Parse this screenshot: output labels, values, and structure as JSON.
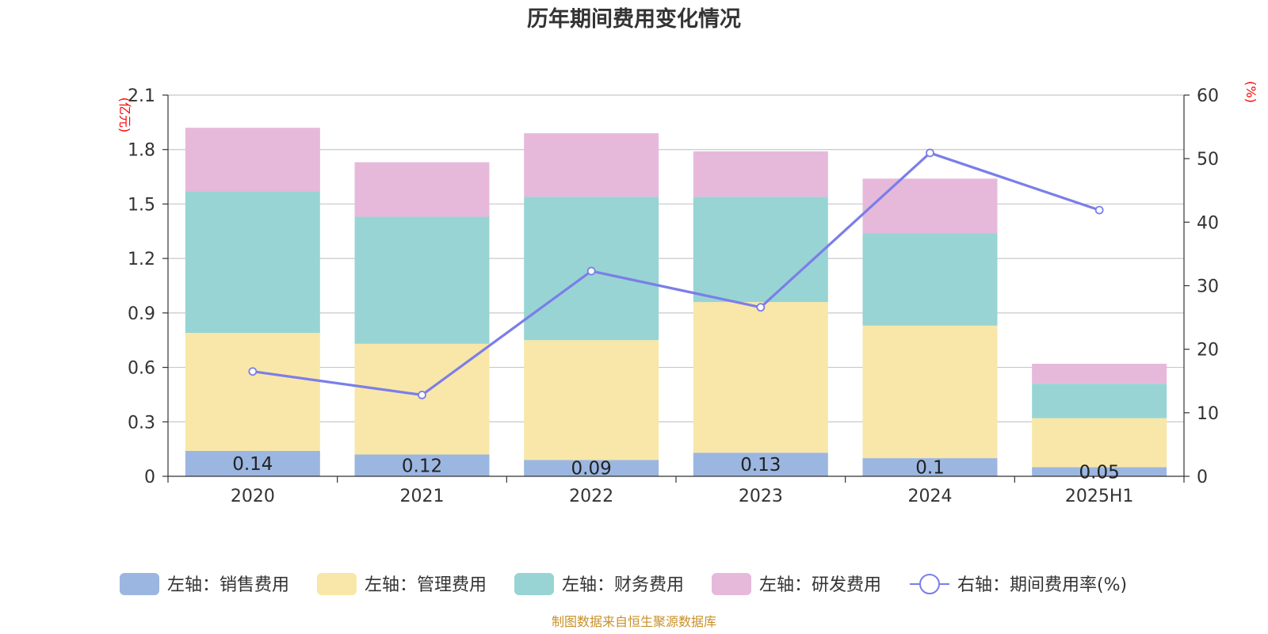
{
  "chart_data": {
    "type": "bar",
    "stacked": true,
    "title": "历年期间费用变化情况",
    "categories": [
      "2020",
      "2021",
      "2022",
      "2023",
      "2024",
      "2025H1"
    ],
    "left_axis": {
      "unit_label": "(亿元)",
      "ylim": [
        0,
        2.1
      ],
      "ticks": [
        "0",
        "0.3",
        "0.6",
        "0.9",
        "1.2",
        "1.5",
        "1.8",
        "2.1"
      ]
    },
    "right_axis": {
      "unit_label": "(%)",
      "ylim": [
        0,
        60
      ],
      "ticks": [
        "0",
        "10",
        "20",
        "30",
        "40",
        "50",
        "60"
      ]
    },
    "series": [
      {
        "name": "左轴：销售费用",
        "values": [
          0.14,
          0.12,
          0.09,
          0.13,
          0.1,
          0.05
        ],
        "labels": [
          "0.14",
          "0.12",
          "0.09",
          "0.13",
          "0.1",
          "0.05"
        ],
        "color": "#9bb6e0"
      },
      {
        "name": "左轴：管理费用",
        "values": [
          0.65,
          0.61,
          0.66,
          0.83,
          0.73,
          0.27
        ],
        "color": "#f8e7a8"
      },
      {
        "name": "左轴：财务费用",
        "values": [
          0.78,
          0.7,
          0.79,
          0.58,
          0.51,
          0.19
        ],
        "color": "#98d4d4"
      },
      {
        "name": "左轴：研发费用",
        "values": [
          0.35,
          0.3,
          0.35,
          0.25,
          0.3,
          0.11
        ],
        "color": "#e6b9da"
      }
    ],
    "line": {
      "name": "右轴：期间费用率(%)",
      "axis": "right",
      "values": [
        16.5,
        12.8,
        32.3,
        26.6,
        50.9,
        41.9
      ],
      "color": "#7b7ee8"
    },
    "grid": true,
    "legend_position": "bottom"
  },
  "source_note": "制图数据来自恒生聚源数据库"
}
